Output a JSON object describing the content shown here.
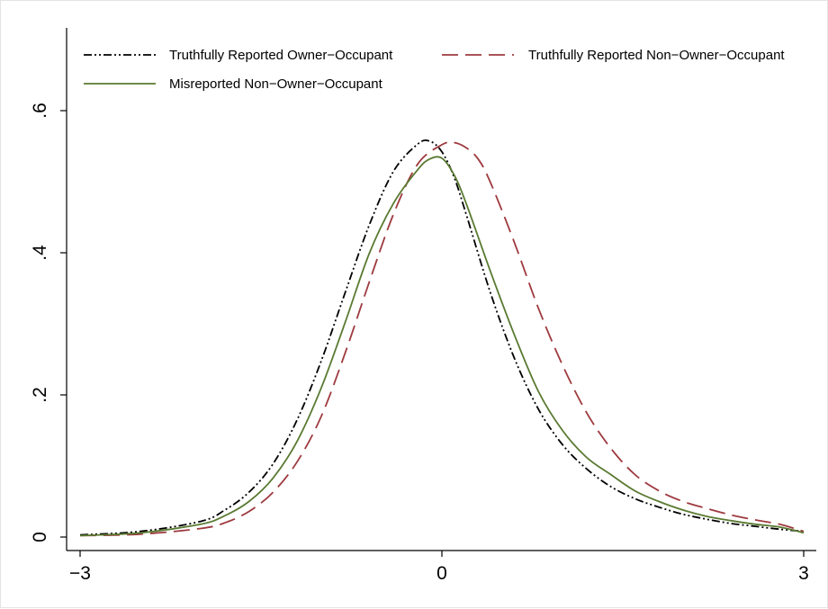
{
  "chart_data": {
    "type": "line",
    "title": "",
    "xlabel": "",
    "ylabel": "",
    "xlim": [
      -3,
      3
    ],
    "ylim": [
      0,
      0.7
    ],
    "x_ticks": [
      -3,
      0,
      3
    ],
    "x_tick_labels": [
      "−3",
      "0",
      "3"
    ],
    "y_ticks": [
      0,
      0.2,
      0.4,
      0.6
    ],
    "y_tick_labels": [
      "0",
      ".2",
      ".4",
      ".6"
    ],
    "grid": false,
    "legend_placement": "top",
    "series": [
      {
        "name": "Truthfully Reported Owner−Occupant",
        "color": "#000000",
        "dash": "dash-dot-dot",
        "x": [
          -3.0,
          -2.5,
          -2.0,
          -1.8,
          -1.6,
          -1.4,
          -1.2,
          -1.0,
          -0.8,
          -0.6,
          -0.4,
          -0.2,
          -0.1,
          0.0,
          0.1,
          0.2,
          0.4,
          0.6,
          0.8,
          1.0,
          1.2,
          1.4,
          1.6,
          1.8,
          2.0,
          2.2,
          2.4,
          2.6,
          2.8,
          3.0
        ],
        "y": [
          0.003,
          0.008,
          0.022,
          0.038,
          0.063,
          0.103,
          0.165,
          0.248,
          0.345,
          0.44,
          0.515,
          0.553,
          0.557,
          0.542,
          0.507,
          0.455,
          0.345,
          0.252,
          0.18,
          0.13,
          0.096,
          0.071,
          0.054,
          0.042,
          0.032,
          0.025,
          0.019,
          0.015,
          0.011,
          0.008
        ]
      },
      {
        "name": "Truthfully Reported Non−Owner−Occupant",
        "color": "#9e3a3f",
        "dash": "long-dash",
        "x": [
          -3.0,
          -2.5,
          -2.0,
          -1.8,
          -1.6,
          -1.4,
          -1.2,
          -1.0,
          -0.8,
          -0.6,
          -0.4,
          -0.2,
          0.0,
          0.1,
          0.2,
          0.3,
          0.4,
          0.6,
          0.8,
          1.0,
          1.2,
          1.4,
          1.6,
          1.8,
          2.0,
          2.2,
          2.4,
          2.6,
          2.8,
          3.0
        ],
        "y": [
          0.002,
          0.004,
          0.012,
          0.02,
          0.036,
          0.063,
          0.106,
          0.17,
          0.26,
          0.36,
          0.455,
          0.525,
          0.552,
          0.555,
          0.548,
          0.532,
          0.5,
          0.415,
          0.322,
          0.242,
          0.175,
          0.125,
          0.088,
          0.065,
          0.05,
          0.04,
          0.031,
          0.024,
          0.018,
          0.008
        ]
      },
      {
        "name": "Misreported Non−Owner−Occupant",
        "color": "#5a7a32",
        "dash": "solid",
        "x": [
          -3.0,
          -2.5,
          -2.0,
          -1.8,
          -1.6,
          -1.4,
          -1.2,
          -1.0,
          -0.8,
          -0.6,
          -0.4,
          -0.2,
          -0.1,
          0.0,
          0.1,
          0.2,
          0.4,
          0.6,
          0.8,
          1.0,
          1.2,
          1.4,
          1.6,
          1.8,
          2.0,
          2.2,
          2.4,
          2.6,
          2.8,
          3.0
        ],
        "y": [
          0.002,
          0.006,
          0.018,
          0.03,
          0.05,
          0.083,
          0.135,
          0.21,
          0.303,
          0.4,
          0.47,
          0.517,
          0.532,
          0.533,
          0.51,
          0.47,
          0.375,
          0.285,
          0.205,
          0.15,
          0.112,
          0.088,
          0.065,
          0.05,
          0.038,
          0.029,
          0.023,
          0.018,
          0.014,
          0.006
        ]
      }
    ]
  }
}
